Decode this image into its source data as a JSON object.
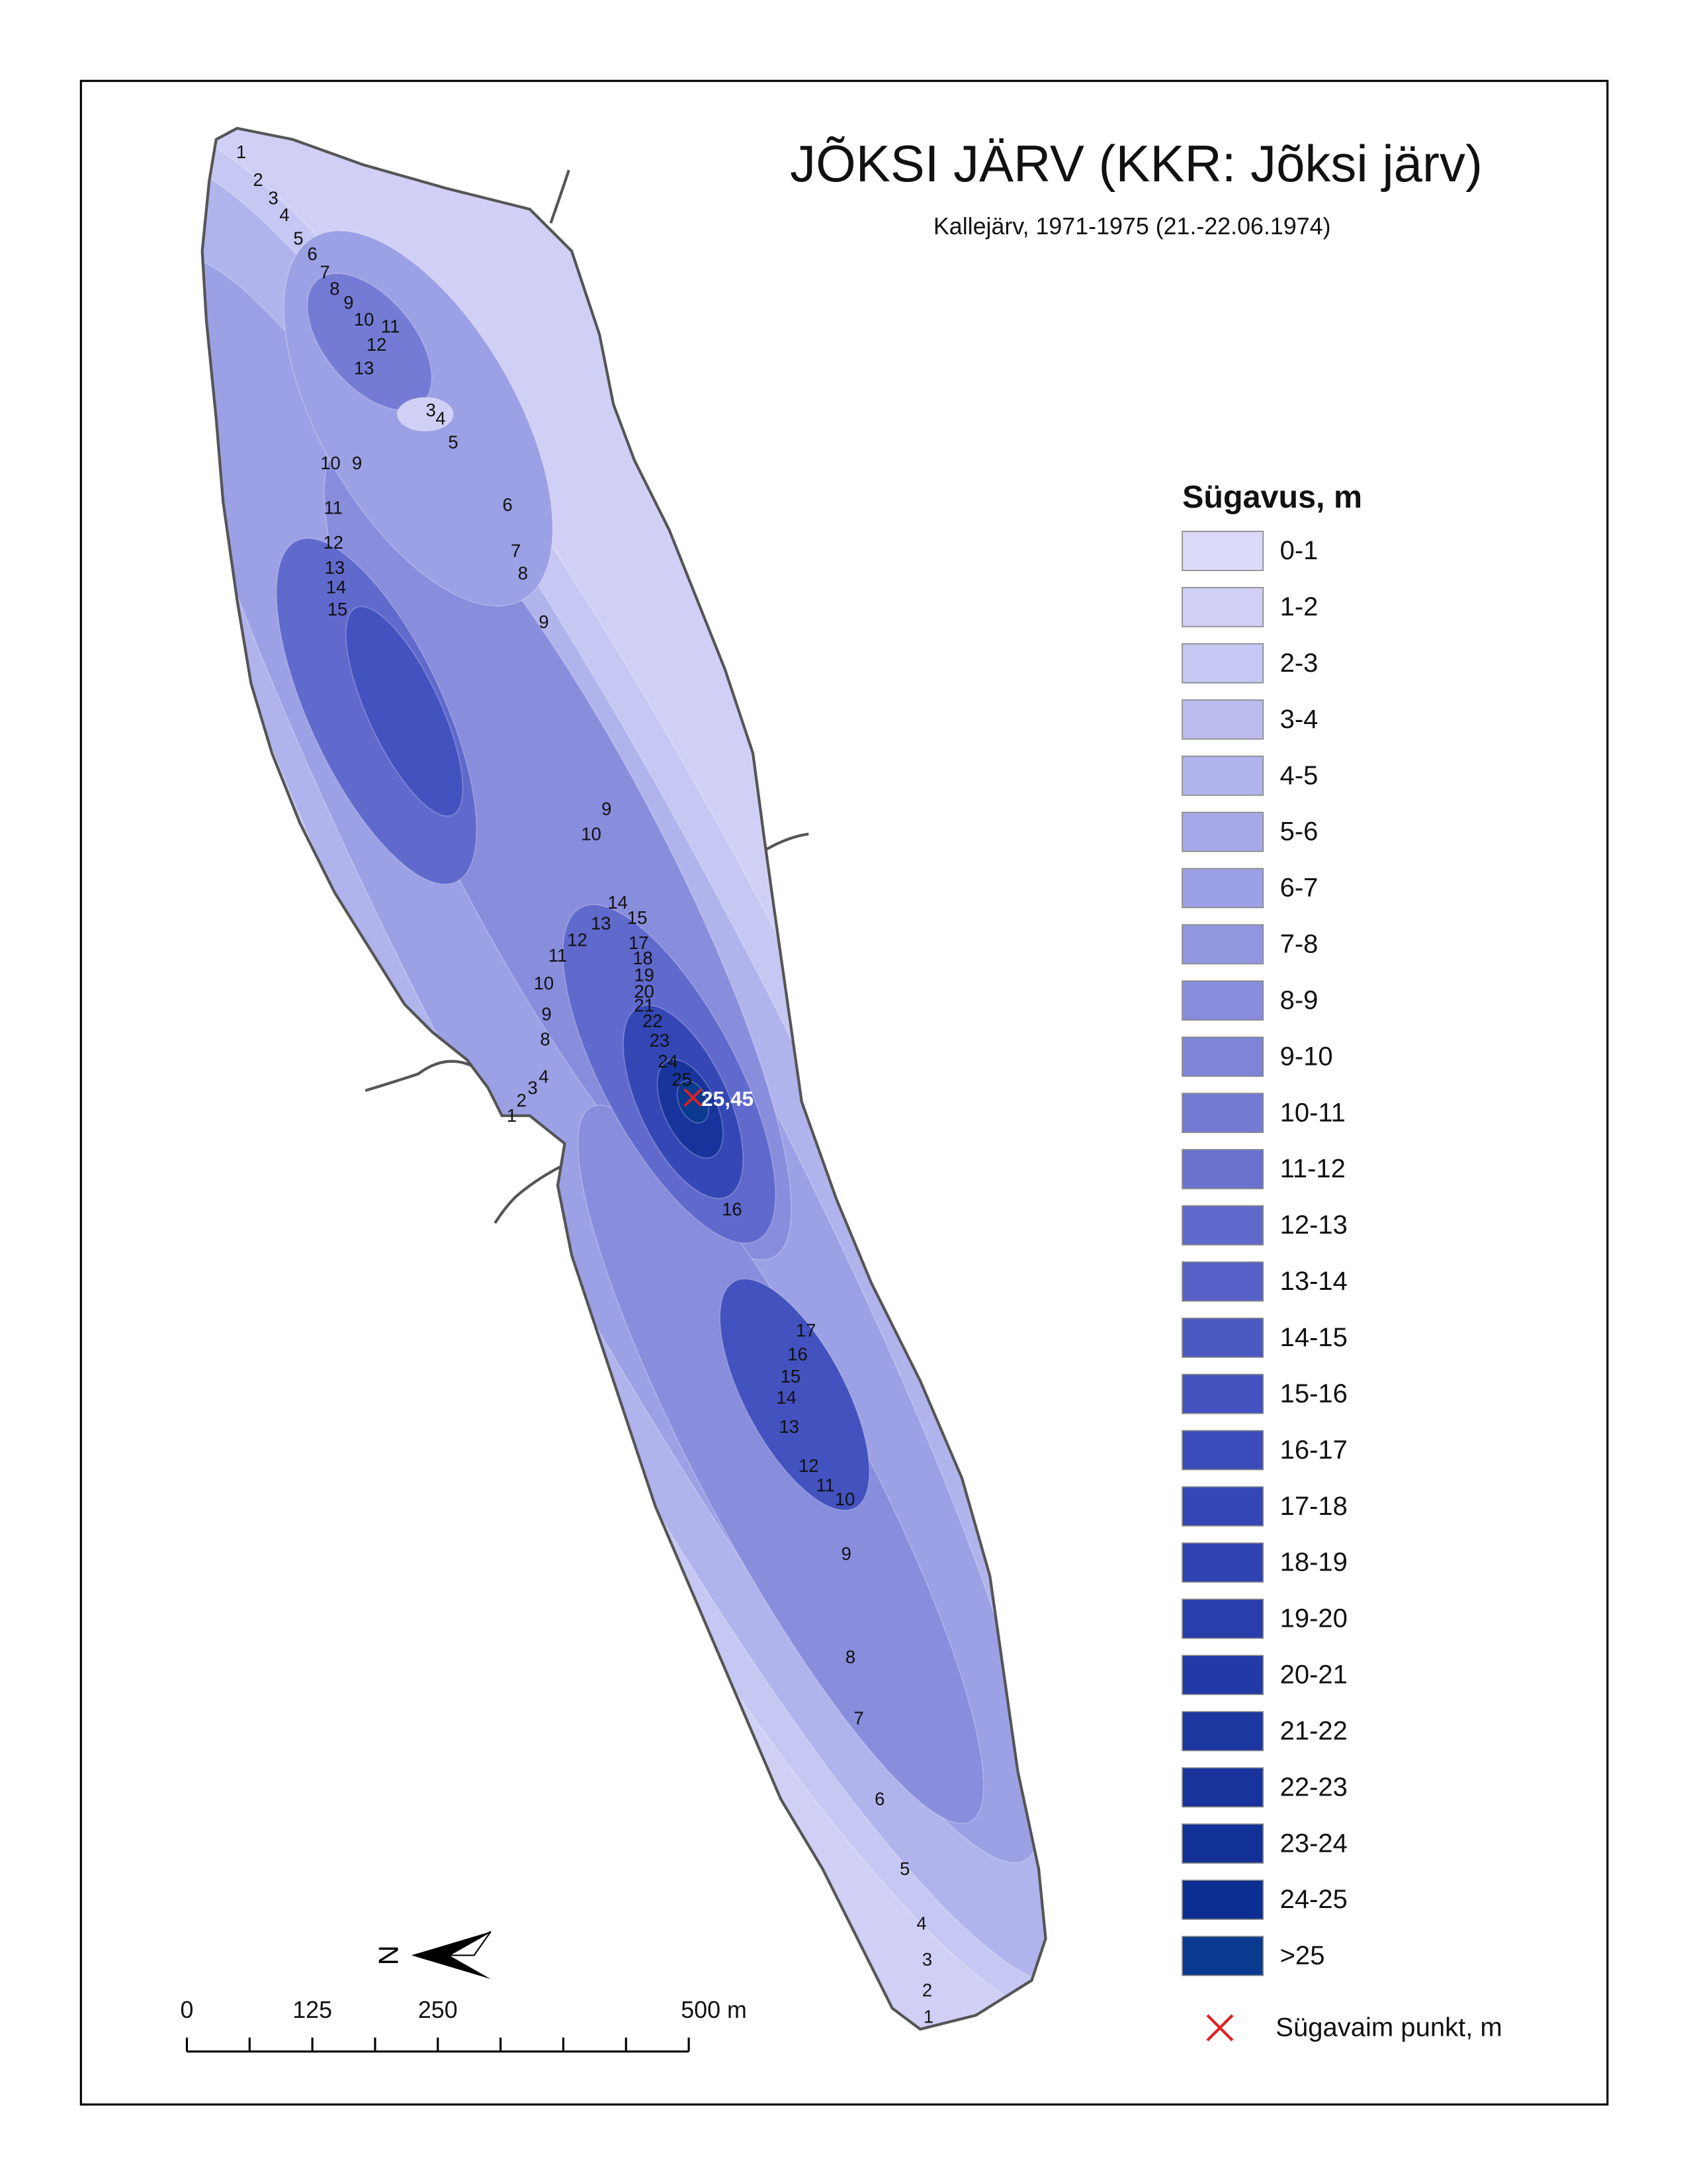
{
  "header": {
    "title": "JÕKSI JÄRV (KKR: Jõksi järv)",
    "subtitle": "Kallejärv, 1971-1975 (21.-22.06.1974)"
  },
  "depth_labels": [
    "1",
    "2",
    "3",
    "4",
    "5",
    "6",
    "7",
    "8",
    "9",
    "10",
    "11",
    "12",
    "13",
    "3",
    "4",
    "5",
    "10",
    "9",
    "6",
    "11",
    "7",
    "8",
    "12",
    "13",
    "14",
    "15",
    "9",
    "9",
    "10",
    "14",
    "15",
    "13",
    "12",
    "17",
    "11",
    "18",
    "19",
    "10",
    "20",
    "21",
    "9",
    "22",
    "8",
    "23",
    "24",
    "4",
    "3",
    "25",
    "2",
    "1",
    "16",
    "17",
    "16",
    "15",
    "14",
    "13",
    "12",
    "11",
    "10",
    "9",
    "8",
    "7",
    "6",
    "5",
    "4",
    "3",
    "2",
    "1"
  ],
  "deepest_point": {
    "label": "25,45"
  },
  "legend": {
    "title": "Sügavus, m",
    "items": [
      {
        "label": "0-1",
        "color": "#dadaf8"
      },
      {
        "label": "1-2",
        "color": "#d0d0f6"
      },
      {
        "label": "2-3",
        "color": "#c6c7f2"
      },
      {
        "label": "3-4",
        "color": "#bbbdef"
      },
      {
        "label": "4-5",
        "color": "#b1b3ec"
      },
      {
        "label": "5-6",
        "color": "#a6a9e8"
      },
      {
        "label": "6-7",
        "color": "#9ca0e4"
      },
      {
        "label": "7-8",
        "color": "#9297e0"
      },
      {
        "label": "8-9",
        "color": "#888ddc"
      },
      {
        "label": "9-10",
        "color": "#7e84d8"
      },
      {
        "label": "10-11",
        "color": "#747bd4"
      },
      {
        "label": "11-12",
        "color": "#6a72d0"
      },
      {
        "label": "12-13",
        "color": "#6069cc"
      },
      {
        "label": "13-14",
        "color": "#5661c8"
      },
      {
        "label": "14-15",
        "color": "#4c59c3"
      },
      {
        "label": "15-16",
        "color": "#4352bf"
      },
      {
        "label": "16-17",
        "color": "#3b4cba"
      },
      {
        "label": "17-18",
        "color": "#3447b5"
      },
      {
        "label": "18-19",
        "color": "#2e42b0"
      },
      {
        "label": "19-20",
        "color": "#283eab"
      },
      {
        "label": "20-21",
        "color": "#223aa6"
      },
      {
        "label": "21-22",
        "color": "#1d37a1"
      },
      {
        "label": "22-23",
        "color": "#18349c"
      },
      {
        "label": "23-24",
        "color": "#123197"
      },
      {
        "label": "24-25",
        "color": "#0c2e92"
      },
      {
        "label": ">25",
        "color": "#0a3a8f"
      }
    ],
    "marker_label": "Sügavaim punkt, m"
  },
  "scale_bar": {
    "labels": [
      "0",
      "125",
      "250",
      "500 m"
    ]
  },
  "north_arrow": {
    "label": "N"
  }
}
